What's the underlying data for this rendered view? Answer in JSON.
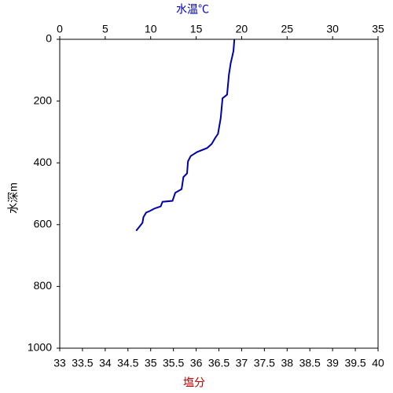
{
  "chart_data": {
    "type": "line",
    "xlabel": "水温℃",
    "xlabel_color": "#0000c0",
    "x2label": "塩分",
    "x2label_color": "#c00000",
    "ylabel": "水深m",
    "xlim": [
      0,
      35
    ],
    "xticks": [
      0,
      5,
      10,
      15,
      20,
      25,
      30,
      35
    ],
    "x2lim": [
      33,
      40
    ],
    "x2ticks": [
      33,
      33.5,
      34,
      34.5,
      35,
      35.5,
      36,
      36.5,
      37,
      37.5,
      38,
      38.5,
      39,
      39.5,
      40
    ],
    "ylim": [
      0,
      1000
    ],
    "yticks": [
      0,
      200,
      400,
      600,
      800,
      1000
    ],
    "y_inverted": true,
    "series": [
      {
        "color": "#0000aa",
        "x": [
          19.2,
          19.1,
          18.8,
          18.6,
          18.4,
          17.9,
          17.7,
          17.4,
          17.1,
          16.7,
          16.2,
          15.1,
          14.4,
          14.1,
          14.0,
          13.6,
          13.4,
          12.7,
          12.4,
          11.3,
          11.1,
          10.4,
          9.9,
          9.5,
          9.2,
          9.1,
          8.4
        ],
        "values": [
          0,
          38,
          77,
          115,
          179,
          191,
          255,
          306,
          319,
          339,
          352,
          365,
          378,
          395,
          434,
          446,
          485,
          497,
          523,
          526,
          541,
          548,
          556,
          561,
          576,
          594,
          620
        ]
      }
    ]
  }
}
